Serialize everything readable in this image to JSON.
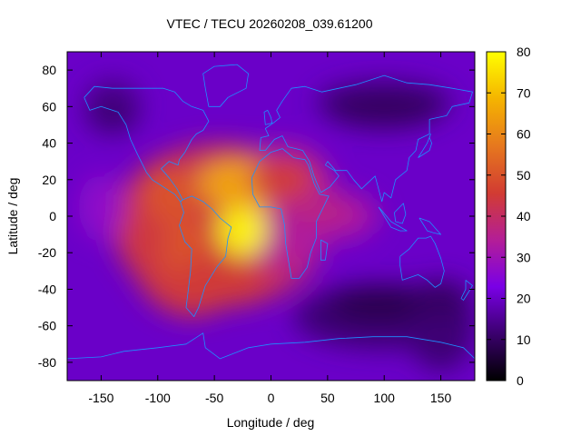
{
  "chart_data": {
    "type": "heatmap",
    "title": "VTEC / TECU 20260208_039.61200",
    "xlabel": "Longitude / deg",
    "ylabel": "Latitude / deg",
    "xlim": [
      -180,
      180
    ],
    "ylim": [
      -90,
      90
    ],
    "x_ticks": [
      -150,
      -100,
      -50,
      0,
      50,
      100,
      150
    ],
    "y_ticks": [
      -80,
      -60,
      -40,
      -20,
      0,
      20,
      40,
      60,
      80
    ],
    "colorbar": {
      "range": [
        0,
        80
      ],
      "ticks": [
        0,
        10,
        20,
        30,
        40,
        50,
        60,
        70,
        80
      ],
      "palette": [
        "#000000",
        "#3b006e",
        "#7a00e6",
        "#b41e96",
        "#d23c32",
        "#e6781e",
        "#f5b400",
        "#ffff00"
      ]
    },
    "background_level_tecu": 20,
    "features": [
      {
        "name": "equatorial anomaly peak (South Atlantic)",
        "lon": -25,
        "lat": -8,
        "vtec": 78
      },
      {
        "name": "northern crest (North Atlantic / Africa)",
        "lon": -25,
        "lat": 18,
        "vtec": 65
      },
      {
        "name": "Caribbean high",
        "lon": -90,
        "lat": 12,
        "vtec": 50
      },
      {
        "name": "South America high",
        "lon": -75,
        "lat": -20,
        "vtec": 50
      },
      {
        "name": "southern Atlantic band",
        "lon": -45,
        "lat": -35,
        "vtec": 45
      },
      {
        "name": "northern Africa band",
        "lon": 10,
        "lat": 20,
        "vtec": 45
      },
      {
        "name": "Indian Ocean tongue",
        "lon": 45,
        "lat": 2,
        "vtec": 38
      },
      {
        "name": "Siberia low",
        "lon": 100,
        "lat": 58,
        "vtec": 10
      },
      {
        "name": "Southern Ocean low",
        "lon": 95,
        "lat": -48,
        "vtec": 8
      },
      {
        "name": "South Pacific low",
        "lon": 150,
        "lat": -45,
        "vtec": 10
      },
      {
        "name": "North Pacific low",
        "lon": -140,
        "lat": 55,
        "vtec": 12
      }
    ]
  }
}
